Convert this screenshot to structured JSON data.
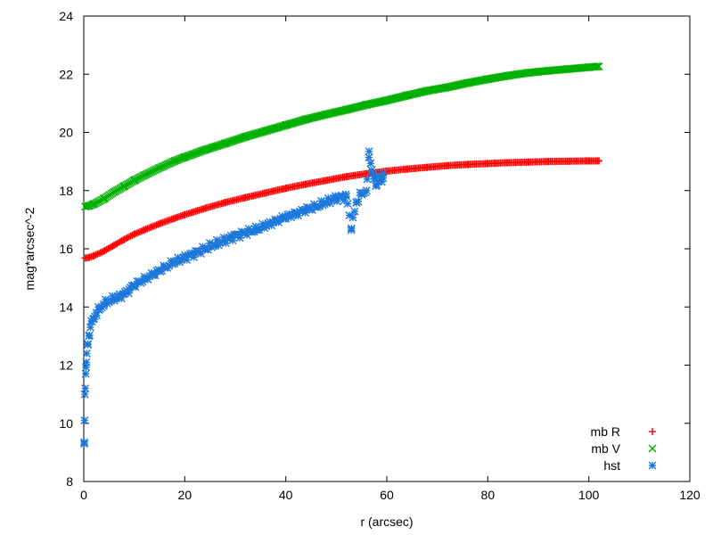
{
  "chart_data": {
    "type": "scatter",
    "title": "",
    "xlabel": "r (arcsec)",
    "ylabel": "mag*arcsec^-2",
    "xlim": [
      0,
      120
    ],
    "ylim": [
      8,
      24
    ],
    "xticks": [
      0,
      20,
      40,
      60,
      80,
      100,
      120
    ],
    "yticks": [
      8,
      10,
      12,
      14,
      16,
      18,
      20,
      22,
      24
    ],
    "grid": false,
    "legend_position": "bottom-right",
    "series": [
      {
        "name": "mb R",
        "marker": "+",
        "color": "#ff0000",
        "x": [
          0.3,
          1,
          2,
          4,
          6,
          8,
          10,
          12,
          15,
          18,
          20,
          24,
          28,
          32,
          36,
          40,
          44,
          48,
          52,
          56,
          60,
          64,
          68,
          72,
          76,
          80,
          84,
          88,
          92,
          96,
          100,
          102
        ],
        "y": [
          15.68,
          15.7,
          15.76,
          15.92,
          16.12,
          16.32,
          16.5,
          16.65,
          16.86,
          17.05,
          17.17,
          17.39,
          17.59,
          17.76,
          17.92,
          18.08,
          18.22,
          18.35,
          18.48,
          18.58,
          18.67,
          18.74,
          18.8,
          18.86,
          18.9,
          18.93,
          18.96,
          18.98,
          19.0,
          19.01,
          19.02,
          19.02
        ]
      },
      {
        "name": "mb V",
        "marker": "x",
        "color": "#00b000",
        "x": [
          0.3,
          1,
          2,
          4,
          6,
          8,
          10,
          12,
          15,
          18,
          20,
          24,
          28,
          32,
          36,
          40,
          44,
          48,
          52,
          56,
          60,
          64,
          68,
          72,
          76,
          80,
          84,
          88,
          92,
          96,
          100,
          102
        ],
        "y": [
          17.45,
          17.47,
          17.54,
          17.72,
          17.95,
          18.15,
          18.35,
          18.53,
          18.78,
          19.02,
          19.15,
          19.4,
          19.62,
          19.85,
          20.05,
          20.25,
          20.45,
          20.62,
          20.78,
          20.95,
          21.1,
          21.27,
          21.43,
          21.55,
          21.7,
          21.83,
          21.95,
          22.05,
          22.12,
          22.18,
          22.24,
          22.27
        ]
      },
      {
        "name": "hst",
        "marker": "*",
        "color": "#1e78dc",
        "x": [
          0.1,
          0.15,
          0.2,
          0.3,
          0.4,
          0.5,
          0.6,
          0.8,
          1,
          1.3,
          1.6,
          2,
          2.5,
          3,
          3.5,
          4,
          5,
          6,
          7,
          8,
          9,
          10,
          12,
          14,
          16,
          18,
          20,
          22,
          24,
          26,
          28,
          30,
          32,
          34,
          36,
          38,
          40,
          42,
          44,
          46,
          48,
          50,
          52,
          53,
          54,
          55,
          56,
          56.5,
          57,
          57.5,
          58,
          58.5,
          59,
          59.3
        ],
        "y": [
          9.3,
          10.1,
          11.0,
          11.2,
          11.7,
          12.1,
          12.4,
          12.7,
          13.0,
          13.3,
          13.5,
          13.6,
          13.8,
          13.9,
          14.0,
          14.1,
          14.2,
          14.3,
          14.35,
          14.45,
          14.6,
          14.75,
          14.95,
          15.15,
          15.35,
          15.55,
          15.7,
          15.85,
          16.0,
          16.15,
          16.3,
          16.45,
          16.55,
          16.65,
          16.8,
          16.95,
          17.1,
          17.2,
          17.35,
          17.45,
          17.6,
          17.75,
          17.8,
          16.7,
          17.6,
          17.9,
          18.0,
          19.35,
          18.7,
          18.4,
          18.2,
          18.5,
          18.3,
          18.6
        ]
      }
    ]
  }
}
